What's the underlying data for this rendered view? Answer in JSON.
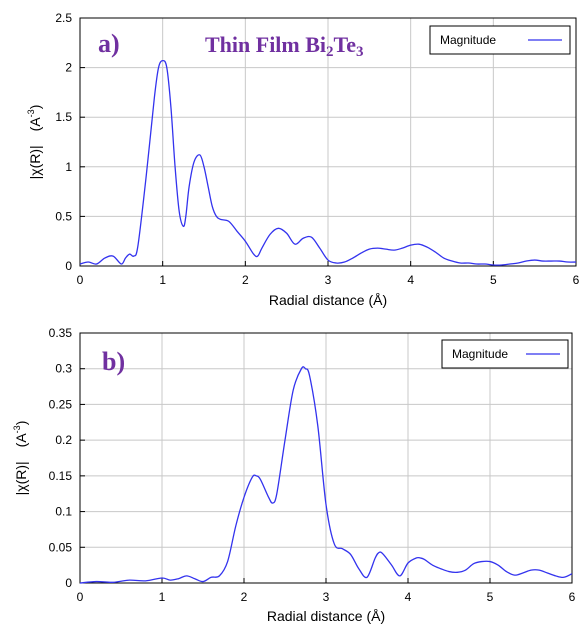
{
  "chart_data": [
    {
      "type": "line",
      "panel_label": "a)",
      "title": "Thin Film Bi",
      "title_sub": "2",
      "title_mid": "Te",
      "title_sub2": "3",
      "xlabel": "Radial distance    (Å)",
      "ylabel_main": "|χ(R)|",
      "ylabel_unit": "(A",
      "ylabel_exp": "-3",
      "ylabel_close": ")",
      "xlim": [
        0,
        6
      ],
      "ylim": [
        0,
        2.5
      ],
      "xticks": [
        "0",
        "1",
        "2",
        "3",
        "4",
        "5",
        "6"
      ],
      "yticks": [
        "0",
        "0.5",
        "1",
        "1.5",
        "2",
        "2.5"
      ],
      "grid": true,
      "legend_position": "top-right",
      "series": [
        {
          "name": "Magnitude",
          "color": "#3333ee",
          "x": [
            0,
            0.1,
            0.2,
            0.3,
            0.4,
            0.5,
            0.55,
            0.6,
            0.65,
            0.7,
            0.8,
            0.9,
            0.95,
            1.0,
            1.05,
            1.1,
            1.15,
            1.2,
            1.25,
            1.28,
            1.32,
            1.38,
            1.45,
            1.5,
            1.55,
            1.6,
            1.65,
            1.7,
            1.8,
            1.9,
            2.0,
            2.1,
            2.15,
            2.2,
            2.3,
            2.4,
            2.5,
            2.6,
            2.7,
            2.8,
            2.9,
            3.0,
            3.1,
            3.2,
            3.3,
            3.4,
            3.5,
            3.6,
            3.7,
            3.8,
            3.9,
            4.0,
            4.1,
            4.2,
            4.3,
            4.4,
            4.5,
            4.6,
            4.7,
            4.8,
            4.9,
            5.0,
            5.1,
            5.2,
            5.3,
            5.4,
            5.5,
            5.6,
            5.7,
            5.8,
            5.9,
            6.0
          ],
          "y": [
            0.02,
            0.04,
            0.02,
            0.08,
            0.1,
            0.02,
            0.08,
            0.12,
            0.1,
            0.2,
            0.9,
            1.7,
            2.0,
            2.07,
            2.0,
            1.6,
            1.0,
            0.55,
            0.4,
            0.5,
            0.8,
            1.05,
            1.12,
            1.0,
            0.8,
            0.6,
            0.5,
            0.47,
            0.45,
            0.35,
            0.25,
            0.12,
            0.1,
            0.18,
            0.32,
            0.38,
            0.33,
            0.22,
            0.28,
            0.29,
            0.18,
            0.06,
            0.03,
            0.04,
            0.08,
            0.13,
            0.17,
            0.18,
            0.17,
            0.16,
            0.18,
            0.21,
            0.22,
            0.19,
            0.14,
            0.08,
            0.05,
            0.03,
            0.03,
            0.02,
            0.02,
            0.01,
            0.01,
            0.02,
            0.03,
            0.05,
            0.06,
            0.05,
            0.05,
            0.05,
            0.04,
            0.04
          ]
        }
      ]
    },
    {
      "type": "line",
      "panel_label": "b)",
      "title": "",
      "xlabel": "Radial distance    (Å)",
      "ylabel_main": "|χ(R)|",
      "ylabel_unit": "(A",
      "ylabel_exp": "-3",
      "ylabel_close": ")",
      "xlim": [
        0,
        6
      ],
      "ylim": [
        0,
        0.35
      ],
      "xticks": [
        "0",
        "1",
        "2",
        "3",
        "4",
        "5",
        "6"
      ],
      "yticks": [
        "0",
        "0.05",
        "0.1",
        "0.15",
        "0.2",
        "0.25",
        "0.3",
        "0.35"
      ],
      "grid": true,
      "legend_position": "top-right",
      "series": [
        {
          "name": "Magnitude",
          "color": "#3333ee",
          "x": [
            0,
            0.2,
            0.4,
            0.6,
            0.8,
            1.0,
            1.1,
            1.2,
            1.3,
            1.4,
            1.5,
            1.6,
            1.7,
            1.8,
            1.9,
            2.0,
            2.1,
            2.15,
            2.2,
            2.3,
            2.35,
            2.4,
            2.5,
            2.6,
            2.7,
            2.75,
            2.8,
            2.9,
            3.0,
            3.1,
            3.2,
            3.3,
            3.4,
            3.5,
            3.6,
            3.65,
            3.7,
            3.8,
            3.9,
            4.0,
            4.1,
            4.15,
            4.2,
            4.3,
            4.4,
            4.5,
            4.6,
            4.7,
            4.8,
            4.9,
            5.0,
            5.1,
            5.2,
            5.3,
            5.4,
            5.5,
            5.6,
            5.7,
            5.8,
            5.9,
            6.0
          ],
          "y": [
            0.0,
            0.002,
            0.001,
            0.004,
            0.003,
            0.007,
            0.004,
            0.006,
            0.01,
            0.006,
            0.002,
            0.008,
            0.01,
            0.03,
            0.08,
            0.12,
            0.148,
            0.15,
            0.145,
            0.12,
            0.112,
            0.125,
            0.2,
            0.27,
            0.3,
            0.3,
            0.29,
            0.22,
            0.11,
            0.055,
            0.048,
            0.04,
            0.02,
            0.008,
            0.035,
            0.043,
            0.04,
            0.025,
            0.01,
            0.028,
            0.035,
            0.035,
            0.033,
            0.025,
            0.02,
            0.016,
            0.015,
            0.018,
            0.027,
            0.03,
            0.03,
            0.025,
            0.016,
            0.011,
            0.014,
            0.018,
            0.018,
            0.014,
            0.01,
            0.008,
            0.013
          ]
        }
      ]
    }
  ]
}
